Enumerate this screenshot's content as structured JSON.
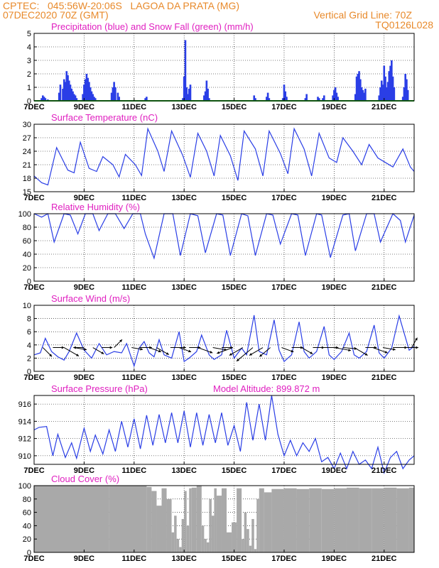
{
  "header": {
    "line1": "CPTEC:   045:56W-20:06S   LAGOA DA PRATA (MG)",
    "line2_left": "07DEC2020 70Z (GMT)",
    "line2_right": "Vertical Grid Line: 70Z",
    "code": "TQ0126L028"
  },
  "colors": {
    "header": "#e8892a",
    "title": "#e020c0",
    "line": "#2a3ee6",
    "snow": "#1fa81f",
    "cloud": "#a9a9a9"
  },
  "x_ticks": [
    "7DEC",
    "9DEC",
    "11DEC",
    "13DEC",
    "15DEC",
    "17DEC",
    "19DEC",
    "21DEC"
  ],
  "x_tick_days": [
    7,
    9,
    11,
    13,
    15,
    17,
    19,
    21
  ],
  "x_range": [
    7,
    22.2
  ],
  "chart_data": [
    {
      "type": "bar",
      "title": "Precipitation (blue) and Snow Fall (green) (mm/h)",
      "ylim": [
        0,
        5
      ],
      "yticks": [
        0,
        1,
        2,
        3,
        4,
        5
      ],
      "grid": true,
      "series": [
        {
          "name": "Precipitation",
          "color": "blue",
          "x": [
            7.3,
            7.35,
            7.4,
            7.45,
            7.55,
            8.0,
            8.05,
            8.15,
            8.2,
            8.25,
            8.3,
            8.35,
            8.4,
            8.45,
            8.5,
            8.55,
            8.6,
            8.65,
            8.7,
            8.95,
            9.0,
            9.05,
            9.1,
            9.15,
            9.2,
            9.25,
            9.3,
            9.35,
            9.4,
            9.45,
            10.1,
            10.15,
            10.2,
            10.25,
            10.35,
            10.4,
            11.45,
            11.5,
            12.95,
            13.0,
            13.05,
            13.1,
            13.15,
            13.2,
            13.25,
            13.8,
            13.85,
            13.9,
            13.95,
            14.0,
            15.8,
            15.85,
            16.3,
            16.35,
            16.4,
            16.95,
            17.0,
            17.05,
            17.1,
            17.85,
            17.9,
            18.35,
            18.4,
            18.55,
            18.6,
            18.95,
            19.0,
            19.05,
            19.1,
            19.15,
            19.85,
            19.9,
            19.95,
            20.0,
            20.05,
            20.1,
            20.15,
            20.2,
            20.25,
            20.8,
            20.85,
            20.9,
            20.95,
            21.0,
            21.05,
            21.1,
            21.15,
            21.2,
            21.25,
            21.3,
            21.35,
            21.4,
            21.75,
            21.8,
            21.85,
            21.9,
            21.95
          ],
          "values": [
            0.2,
            0.4,
            0.3,
            0.2,
            0.1,
            0.6,
            1.2,
            0.9,
            1.6,
            1.4,
            2.2,
            1.9,
            1.5,
            1.2,
            0.9,
            0.7,
            0.5,
            0.4,
            0.2,
            0.5,
            1.2,
            1.6,
            2.0,
            1.7,
            1.4,
            1.0,
            0.7,
            0.5,
            0.3,
            0.2,
            0.6,
            1.0,
            1.4,
            1.0,
            0.6,
            0.3,
            0.2,
            0.3,
            0.2,
            1.8,
            4.5,
            1.0,
            0.5,
            0.9,
            1.2,
            0.4,
            0.7,
            1.5,
            0.9,
            0.2,
            0.4,
            0.2,
            0.3,
            0.6,
            0.2,
            0.2,
            1.2,
            0.7,
            0.3,
            0.2,
            0.5,
            0.3,
            0.2,
            0.2,
            0.4,
            0.4,
            0.8,
            1.0,
            0.6,
            0.3,
            0.5,
            1.8,
            2.0,
            2.2,
            1.6,
            1.0,
            0.8,
            0.6,
            0.9,
            0.4,
            1.0,
            1.5,
            1.2,
            2.6,
            1.8,
            1.0,
            1.4,
            2.2,
            2.6,
            3.0,
            1.8,
            1.0,
            0.3,
            1.0,
            2.0,
            1.6,
            0.8
          ]
        },
        {
          "name": "Snow Fall",
          "color": "green",
          "x": [
            7.0,
            22.2
          ],
          "values": [
            0,
            0
          ]
        }
      ]
    },
    {
      "type": "line",
      "title": "Surface Temperature (nC)",
      "ylim": [
        15,
        30
      ],
      "yticks": [
        15,
        18,
        21,
        24,
        27,
        30
      ],
      "grid": true,
      "series": [
        {
          "name": "",
          "color": "blue",
          "x": [
            7.0,
            7.3,
            7.55,
            7.9,
            8.35,
            8.6,
            8.85,
            9.2,
            9.5,
            9.75,
            10.15,
            10.4,
            10.65,
            11.05,
            11.3,
            11.55,
            11.95,
            12.2,
            12.5,
            12.95,
            13.25,
            13.55,
            13.9,
            14.2,
            14.45,
            14.85,
            15.15,
            15.4,
            15.85,
            16.15,
            16.4,
            16.85,
            17.15,
            17.4,
            17.8,
            18.1,
            18.4,
            18.8,
            19.1,
            19.35,
            19.75,
            20.1,
            20.4,
            20.75,
            21.05,
            21.35,
            21.75,
            22.05,
            22.2
          ],
          "values": [
            18.5,
            17.0,
            16.5,
            24.8,
            19.8,
            19.2,
            26.0,
            20.2,
            19.5,
            22.8,
            21.0,
            18.3,
            23.3,
            21.0,
            18.6,
            29.0,
            24.0,
            19.5,
            28.5,
            23.0,
            18.2,
            28.0,
            24.0,
            18.5,
            27.5,
            23.0,
            17.5,
            28.5,
            24.5,
            18.5,
            28.5,
            23.5,
            19.0,
            29.0,
            24.5,
            18.5,
            28.0,
            22.5,
            21.5,
            27.0,
            24.0,
            21.0,
            25.5,
            22.5,
            21.5,
            20.5,
            24.5,
            20.5,
            19.5
          ]
        }
      ]
    },
    {
      "type": "line",
      "title": "Relative Humidity (%)",
      "ylim": [
        0,
        100
      ],
      "yticks": [
        0,
        20,
        40,
        60,
        80,
        100
      ],
      "grid": true,
      "series": [
        {
          "name": "",
          "color": "blue",
          "x": [
            7.0,
            7.3,
            7.55,
            7.8,
            8.2,
            8.45,
            8.75,
            9.05,
            9.35,
            9.6,
            9.95,
            10.25,
            10.6,
            10.95,
            11.25,
            11.45,
            11.8,
            12.2,
            12.55,
            12.85,
            13.25,
            13.55,
            13.85,
            14.3,
            14.55,
            14.85,
            15.3,
            15.55,
            15.85,
            16.3,
            16.55,
            16.85,
            17.3,
            17.55,
            17.85,
            18.3,
            18.5,
            18.85,
            19.35,
            19.6,
            19.85,
            20.3,
            20.6,
            20.85,
            21.35,
            21.65,
            21.85,
            22.2
          ],
          "values": [
            100,
            95,
            100,
            58,
            100,
            98,
            70,
            100,
            100,
            75,
            100,
            100,
            78,
            100,
            100,
            70,
            34,
            100,
            100,
            38,
            100,
            97,
            42,
            100,
            98,
            38,
            100,
            97,
            38,
            100,
            98,
            55,
            100,
            98,
            38,
            100,
            98,
            35,
            98,
            100,
            45,
            100,
            100,
            58,
            100,
            90,
            58,
            98
          ]
        }
      ]
    },
    {
      "type": "line",
      "title": "Surface Wind (m/s)",
      "ylim": [
        0,
        10
      ],
      "yticks": [
        0,
        2,
        4,
        6,
        8,
        10
      ],
      "grid": true,
      "series": [
        {
          "name": "",
          "color": "blue",
          "x": [
            7.0,
            7.25,
            7.45,
            7.7,
            7.95,
            8.2,
            8.4,
            8.7,
            9.0,
            9.3,
            9.6,
            9.9,
            10.2,
            10.5,
            10.7,
            11.0,
            11.2,
            11.4,
            11.6,
            11.8,
            12.0,
            12.2,
            12.5,
            12.8,
            13.0,
            13.2,
            13.5,
            13.7,
            14.0,
            14.2,
            14.5,
            14.7,
            15.0,
            15.3,
            15.5,
            15.8,
            16.0,
            16.3,
            16.6,
            16.8,
            17.0,
            17.3,
            17.6,
            17.8,
            18.0,
            18.3,
            18.6,
            18.8,
            19.0,
            19.3,
            19.6,
            19.8,
            20.0,
            20.3,
            20.6,
            20.8,
            21.0,
            21.3,
            21.6,
            21.8,
            22.0,
            22.2
          ],
          "values": [
            2.5,
            2.8,
            5.0,
            3.0,
            2.2,
            1.7,
            3.0,
            5.8,
            3.2,
            2.0,
            4.2,
            2.5,
            3.0,
            2.8,
            4.2,
            0.8,
            3.5,
            4.5,
            2.8,
            2.2,
            4.8,
            2.5,
            2.0,
            6.0,
            1.5,
            2.0,
            3.0,
            5.5,
            2.5,
            1.8,
            2.5,
            6.2,
            2.0,
            3.5,
            2.5,
            8.5,
            3.0,
            2.5,
            7.8,
            3.2,
            1.5,
            2.5,
            7.5,
            3.0,
            2.0,
            3.0,
            6.8,
            2.5,
            1.8,
            3.0,
            5.8,
            2.5,
            2.0,
            3.0,
            7.0,
            2.8,
            2.0,
            3.5,
            8.4,
            5.8,
            3.2,
            3.8
          ]
        },
        {
          "name": "",
          "type": "arrows",
          "x": [
            7.35,
            7.75,
            8.2,
            8.6,
            9.0,
            9.35,
            9.7,
            10.2,
            10.9,
            11.2,
            11.6,
            11.9,
            12.45,
            12.8,
            13.2,
            13.55,
            14.15,
            14.5,
            14.95,
            15.35,
            15.75,
            16.15,
            16.45,
            16.9,
            17.3,
            17.7,
            18.15,
            18.6,
            19.0,
            19.35,
            19.8,
            20.25,
            20.55,
            20.95,
            21.35,
            21.8,
            22.1
          ],
          "speed": [
            2.5,
            2.0,
            4.0,
            2.5,
            1.8,
            2.5,
            1.8,
            2.0,
            2.0,
            2.5,
            2.5,
            3.0,
            3.5,
            2.5,
            2.0,
            3.5,
            3.0,
            2.0,
            4.0,
            3.5,
            5.5,
            3.5,
            3.0,
            2.5,
            2.0,
            2.5,
            2.0,
            3.0,
            4.0,
            3.0,
            3.5,
            2.0,
            3.5,
            2.5,
            3.0,
            3.0,
            2.0
          ],
          "dir_deg": [
            135,
            90,
            120,
            100,
            270,
            120,
            90,
            45,
            100,
            90,
            110,
            120,
            90,
            110,
            90,
            110,
            100,
            90,
            250,
            240,
            230,
            240,
            230,
            110,
            90,
            120,
            90,
            90,
            100,
            95,
            120,
            90,
            110,
            100,
            90,
            90,
            30
          ]
        }
      ]
    },
    {
      "type": "line",
      "title": "Surface Pressure (hPa)",
      "annotation": "Model Altitude: 899.872 m",
      "ylim": [
        909,
        917
      ],
      "yticks": [
        910,
        912,
        914,
        916
      ],
      "grid": true,
      "series": [
        {
          "name": "",
          "color": "blue",
          "x": [
            7.0,
            7.2,
            7.5,
            7.75,
            7.95,
            8.25,
            8.5,
            8.7,
            9.0,
            9.25,
            9.45,
            9.75,
            10.0,
            10.25,
            10.5,
            10.75,
            11.0,
            11.25,
            11.5,
            11.75,
            12.0,
            12.25,
            12.5,
            12.75,
            13.0,
            13.25,
            13.5,
            13.75,
            14.0,
            14.25,
            14.5,
            14.75,
            15.0,
            15.25,
            15.5,
            15.75,
            16.0,
            16.25,
            16.5,
            16.75,
            17.0,
            17.25,
            17.5,
            17.75,
            18.0,
            18.25,
            18.5,
            18.75,
            19.0,
            19.25,
            19.5,
            19.75,
            20.0,
            20.25,
            20.5,
            20.75,
            21.0,
            21.25,
            21.5,
            21.75,
            22.0,
            22.2
          ],
          "values": [
            913.0,
            913.3,
            913.4,
            910.0,
            912.5,
            909.8,
            911.5,
            909.7,
            913.2,
            910.5,
            912.4,
            910.2,
            913.0,
            910.5,
            914.0,
            911.0,
            914.3,
            910.8,
            914.7,
            911.2,
            914.8,
            911.5,
            915.0,
            911.5,
            915.2,
            911.0,
            915.0,
            911.2,
            914.8,
            911.5,
            915.0,
            911.2,
            913.5,
            910.5,
            916.2,
            911.8,
            916.0,
            911.8,
            917.0,
            912.5,
            910.0,
            911.8,
            910.0,
            911.5,
            910.5,
            912.0,
            909.3,
            909.8,
            908.5,
            910.3,
            908.5,
            910.5,
            909.0,
            909.5,
            908.5,
            911.0,
            908.0,
            909.8,
            910.5,
            908.5,
            909.5,
            910.0
          ]
        }
      ]
    },
    {
      "type": "bar",
      "title": "Cloud Cover (%)",
      "ylim": [
        0,
        100
      ],
      "yticks": [
        0,
        20,
        40,
        60,
        80,
        100
      ],
      "grid": true,
      "series": [
        {
          "name": "",
          "color": "gray",
          "x": [
            7.0,
            10.0,
            11.5,
            11.7,
            11.9,
            12.1,
            12.3,
            12.5,
            12.6,
            12.7,
            12.8,
            12.9,
            13.0,
            13.1,
            13.2,
            13.3,
            13.5,
            13.7,
            13.8,
            13.9,
            14.0,
            14.1,
            14.2,
            14.3,
            14.5,
            14.7,
            14.9,
            15.1,
            15.3,
            15.4,
            15.5,
            15.6,
            15.7,
            15.8,
            15.9,
            16.0,
            16.2,
            16.5,
            17.0,
            17.5,
            18.0,
            18.5,
            19.0,
            19.5,
            20.0,
            20.5,
            21.0,
            21.5,
            22.0,
            22.2
          ],
          "values": [
            100,
            100,
            98,
            92,
            70,
            96,
            80,
            30,
            55,
            20,
            8,
            50,
            92,
            40,
            96,
            97,
            100,
            40,
            20,
            15,
            80,
            55,
            96,
            85,
            96,
            30,
            45,
            96,
            20,
            60,
            35,
            10,
            50,
            5,
            80,
            96,
            90,
            95,
            96,
            95,
            96,
            95,
            96,
            97,
            96,
            96,
            97,
            96,
            97,
            97
          ]
        }
      ]
    }
  ]
}
